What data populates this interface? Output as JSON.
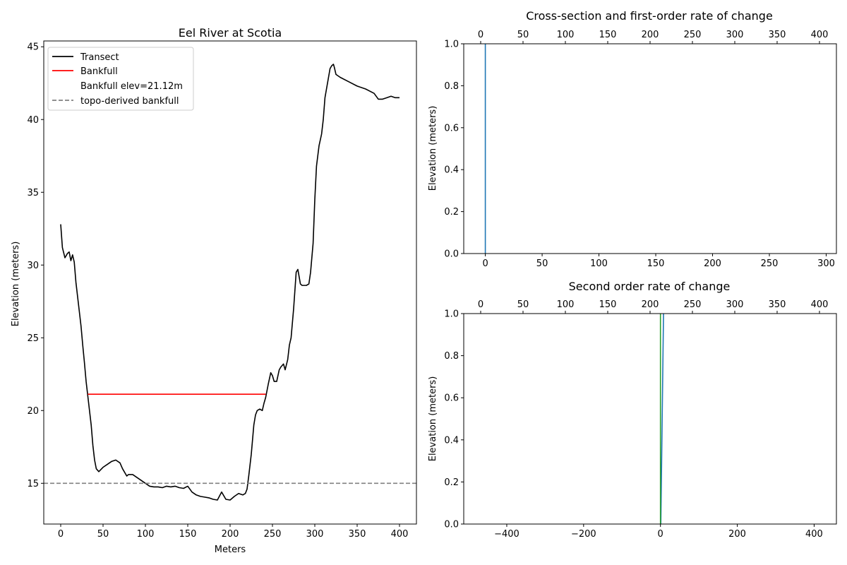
{
  "chart_data": [
    {
      "type": "line",
      "title": "Eel River at Scotia",
      "xlabel": "Meters",
      "ylabel": "Elevation (meters)",
      "xlim": [
        -20,
        420
      ],
      "ylim": [
        12.2,
        45.4
      ],
      "xticks": [
        0,
        50,
        100,
        150,
        200,
        250,
        300,
        350,
        400
      ],
      "yticks": [
        15,
        20,
        25,
        30,
        35,
        40,
        45
      ],
      "grid": false,
      "legend_position": "top-left",
      "legend": [
        "Transect",
        "Bankfull",
        "Bankfull elev=21.12m",
        "topo-derived bankfull"
      ],
      "series": [
        {
          "name": "Transect",
          "color": "#000000",
          "x": [
            0,
            2,
            5,
            8,
            10,
            12,
            14,
            16,
            18,
            20,
            22,
            24,
            26,
            28,
            30,
            32,
            34,
            36,
            38,
            40,
            42,
            45,
            50,
            55,
            60,
            65,
            70,
            73,
            75,
            78,
            80,
            85,
            90,
            95,
            100,
            105,
            110,
            115,
            120,
            125,
            130,
            135,
            140,
            145,
            150,
            155,
            160,
            165,
            170,
            175,
            180,
            185,
            190,
            195,
            200,
            205,
            210,
            215,
            218,
            220,
            222,
            225,
            228,
            230,
            232,
            235,
            238,
            240,
            242,
            245,
            248,
            250,
            252,
            255,
            258,
            260,
            263,
            265,
            268,
            270,
            272,
            275,
            278,
            280,
            283,
            285,
            290,
            293,
            295,
            298,
            300,
            302,
            305,
            308,
            310,
            312,
            315,
            318,
            320,
            322,
            323,
            325,
            330,
            340,
            350,
            360,
            370,
            375,
            380,
            385,
            390,
            395,
            400
          ],
          "values": [
            32.8,
            31.2,
            30.5,
            30.8,
            30.9,
            30.3,
            30.7,
            30.2,
            28.8,
            27.8,
            26.8,
            25.8,
            24.5,
            23.3,
            22.0,
            21.0,
            20.0,
            19.0,
            17.6,
            16.6,
            16.0,
            15.8,
            16.1,
            16.3,
            16.5,
            16.6,
            16.4,
            16.0,
            15.8,
            15.5,
            15.6,
            15.6,
            15.4,
            15.2,
            15.0,
            14.8,
            14.75,
            14.75,
            14.7,
            14.8,
            14.75,
            14.8,
            14.7,
            14.65,
            14.8,
            14.4,
            14.2,
            14.1,
            14.05,
            14.0,
            13.9,
            13.85,
            14.4,
            13.9,
            13.85,
            14.1,
            14.3,
            14.2,
            14.3,
            14.6,
            15.5,
            17.0,
            19.0,
            19.7,
            20.0,
            20.1,
            20.0,
            20.5,
            20.9,
            21.8,
            22.6,
            22.4,
            22.0,
            22.0,
            22.8,
            23.0,
            23.2,
            22.8,
            23.5,
            24.5,
            25.0,
            27.0,
            29.5,
            29.7,
            28.7,
            28.6,
            28.6,
            28.7,
            29.5,
            31.5,
            34.5,
            36.8,
            38.2,
            39.0,
            40.0,
            41.5,
            42.5,
            43.5,
            43.7,
            43.8,
            43.6,
            43.1,
            42.9,
            42.6,
            42.3,
            42.1,
            41.8,
            41.4,
            41.4,
            41.5,
            41.6,
            41.5,
            41.5
          ]
        },
        {
          "name": "Bankfull",
          "color": "#ff0000",
          "x": [
            32,
            242
          ],
          "values": [
            21.12,
            21.12
          ]
        },
        {
          "name": "topo-derived bankfull",
          "color": "#808080",
          "dashed": true,
          "x": [
            -20,
            420
          ],
          "values": [
            15.0,
            15.0
          ]
        }
      ]
    },
    {
      "type": "line",
      "title": "Cross-section and first-order rate of change",
      "xlabel": "",
      "ylabel": "Elevation (meters)",
      "xlim": [
        -19,
        309
      ],
      "ylim": [
        0,
        1
      ],
      "top_xlim": [
        -20,
        420
      ],
      "xticks": [
        0,
        50,
        100,
        150,
        200,
        250,
        300
      ],
      "top_xticks": [
        0,
        50,
        100,
        150,
        200,
        250,
        300,
        350,
        400
      ],
      "yticks": [
        0.0,
        0.2,
        0.4,
        0.6,
        0.8,
        1.0
      ],
      "series": [
        {
          "color": "#1f77b4",
          "x": [
            0,
            0
          ],
          "values": [
            0,
            1
          ]
        }
      ]
    },
    {
      "type": "line",
      "title": "Second order rate of change",
      "xlabel": "",
      "ylabel": "Elevation (meters)",
      "xlim": [
        -512,
        458
      ],
      "ylim": [
        0,
        1
      ],
      "top_xlim": [
        -20,
        420
      ],
      "xticks": [
        -400,
        -200,
        0,
        200,
        400
      ],
      "top_xticks": [
        0,
        50,
        100,
        150,
        200,
        250,
        300,
        350,
        400
      ],
      "yticks": [
        0.0,
        0.2,
        0.4,
        0.6,
        0.8,
        1.0
      ],
      "series": [
        {
          "color": "#1f77b4",
          "x": [
            1,
            8
          ],
          "values": [
            0,
            1
          ]
        },
        {
          "color": "#2ca02c",
          "x": [
            0,
            0
          ],
          "values": [
            0,
            1
          ]
        }
      ]
    }
  ]
}
